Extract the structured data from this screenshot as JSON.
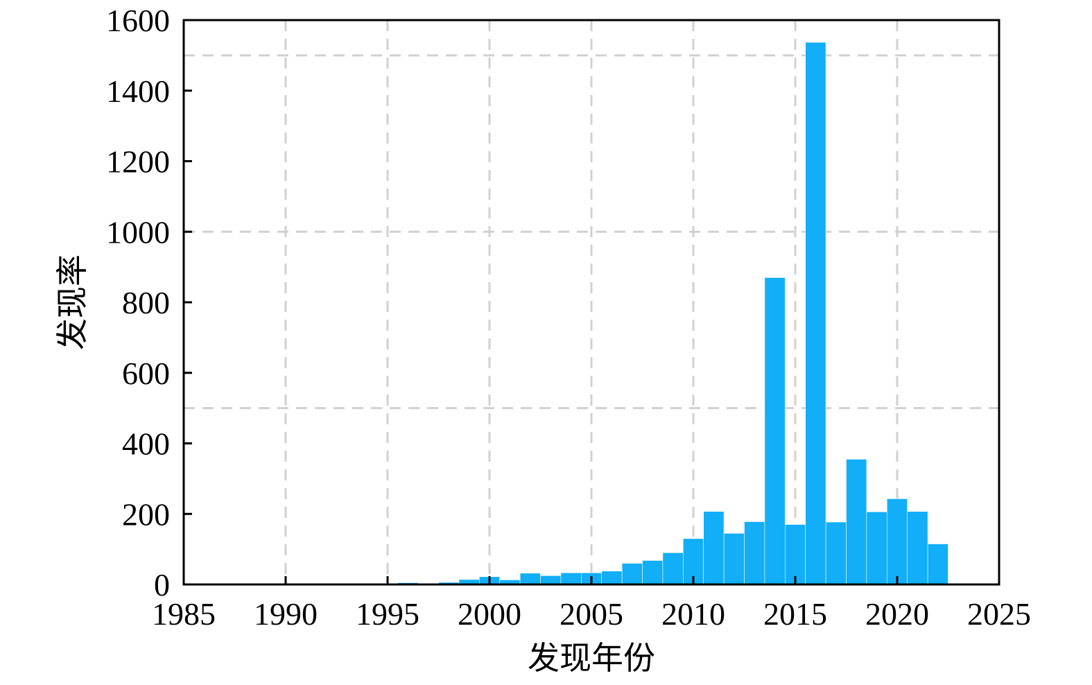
{
  "chart_data": {
    "type": "bar",
    "xlabel": "发现年份",
    "ylabel": "发现率",
    "xlim": [
      1985,
      2025
    ],
    "ylim": [
      0,
      1600
    ],
    "xticks": [
      1985,
      1990,
      1995,
      2000,
      2005,
      2010,
      2015,
      2020,
      2025
    ],
    "yticks": [
      0,
      200,
      400,
      600,
      800,
      1000,
      1200,
      1400,
      1600
    ],
    "x_grid": [
      1990,
      1995,
      2000,
      2005,
      2010,
      2015,
      2020
    ],
    "y_grid": [
      500,
      1000,
      1500
    ],
    "grid": true,
    "bar_color": "#12aef8",
    "x": [
      1988,
      1992,
      1995,
      1996,
      1998,
      1999,
      2000,
      2001,
      2002,
      2003,
      2004,
      2005,
      2006,
      2007,
      2008,
      2009,
      2010,
      2011,
      2012,
      2013,
      2014,
      2015,
      2016,
      2017,
      2018,
      2019,
      2020,
      2021,
      2022
    ],
    "values": [
      1,
      2,
      2,
      5,
      6,
      14,
      22,
      13,
      32,
      25,
      33,
      33,
      38,
      60,
      68,
      90,
      130,
      207,
      145,
      178,
      870,
      170,
      1537,
      177,
      355,
      206,
      243,
      207,
      115
    ]
  }
}
